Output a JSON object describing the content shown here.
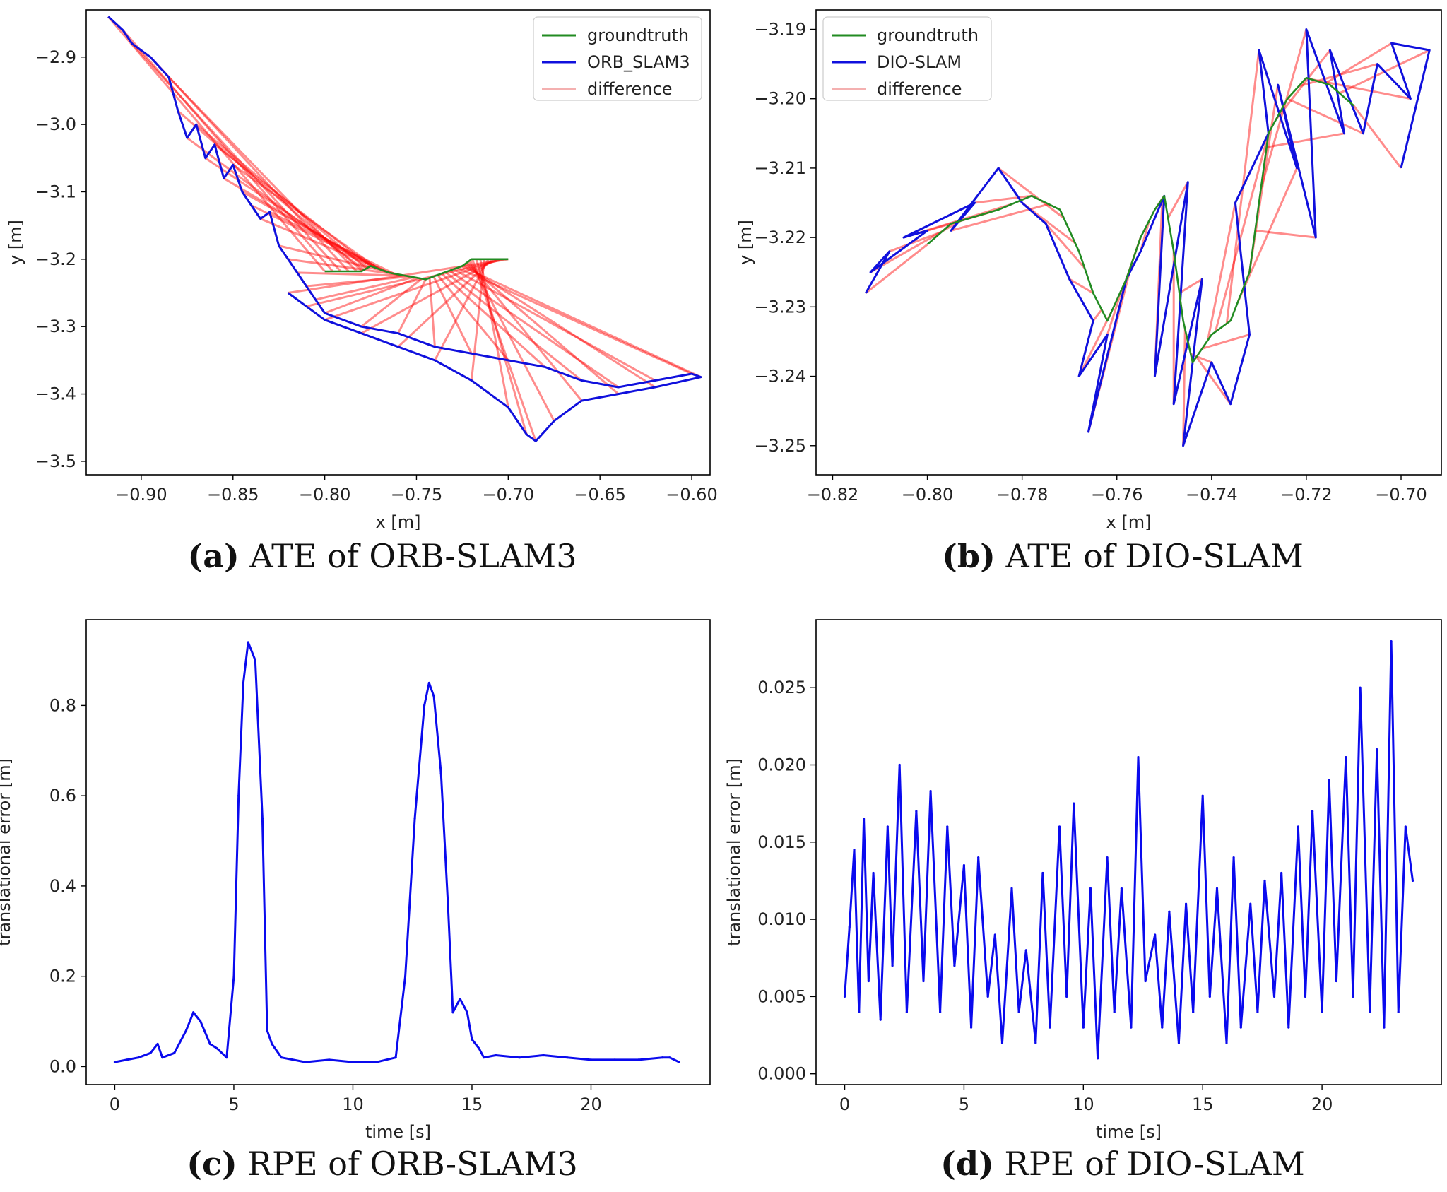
{
  "figure": {
    "captions": [
      {
        "label": "(a)",
        "text": "ATE of ORB-SLAM3"
      },
      {
        "label": "(b)",
        "text": "ATE of DIO-SLAM"
      },
      {
        "label": "(c)",
        "text": "RPE of ORB-SLAM3"
      },
      {
        "label": "(d)",
        "text": "RPE of DIO-SLAM"
      }
    ]
  },
  "colors": {
    "groundtruth": "#228B22",
    "estimate": "#1010dd",
    "difference": "#ff0000",
    "difference_legend": "#f4b0b0",
    "rpe": "#0a0aee",
    "axis": "#000000"
  },
  "chart_data": [
    {
      "type": "line",
      "title": "ATE of ORB-SLAM3",
      "xlabel": "x [m]",
      "ylabel": "y [m]",
      "xlim": [
        -0.93,
        -0.59
      ],
      "ylim": [
        -3.52,
        -2.83
      ],
      "xticks": [
        -0.9,
        -0.85,
        -0.8,
        -0.75,
        -0.7,
        -0.65,
        -0.6
      ],
      "xtick_labels": [
        "−0.90",
        "−0.85",
        "−0.80",
        "−0.75",
        "−0.70",
        "−0.65",
        "−0.60"
      ],
      "yticks": [
        -2.9,
        -3.0,
        -3.1,
        -3.2,
        -3.3,
        -3.4,
        -3.5
      ],
      "ytick_labels": [
        "−2.9",
        "−3.0",
        "−3.1",
        "−3.2",
        "−3.3",
        "−3.4",
        "−3.5"
      ],
      "legend": {
        "position": "top-right",
        "entries": [
          "groundtruth",
          "ORB_SLAM3",
          "difference"
        ]
      },
      "series": [
        {
          "name": "groundtruth",
          "x": [
            -0.8,
            -0.78,
            -0.775,
            -0.765,
            -0.755,
            -0.745,
            -0.735,
            -0.725,
            -0.72,
            -0.71,
            -0.7
          ],
          "y": [
            -3.218,
            -3.218,
            -3.21,
            -3.22,
            -3.225,
            -3.23,
            -3.22,
            -3.21,
            -3.2,
            -3.2,
            -3.2
          ]
        },
        {
          "name": "ORB_SLAM3",
          "x": [
            -0.918,
            -0.91,
            -0.905,
            -0.895,
            -0.885,
            -0.88,
            -0.875,
            -0.87,
            -0.865,
            -0.86,
            -0.855,
            -0.85,
            -0.845,
            -0.84,
            -0.835,
            -0.83,
            -0.825,
            -0.82,
            -0.815,
            -0.81,
            -0.805,
            -0.8,
            -0.78,
            -0.76,
            -0.74,
            -0.72,
            -0.7,
            -0.68,
            -0.66,
            -0.64,
            -0.62,
            -0.6,
            -0.595,
            -0.62,
            -0.64,
            -0.66,
            -0.675,
            -0.685,
            -0.69,
            -0.7,
            -0.72,
            -0.74,
            -0.76,
            -0.78,
            -0.8,
            -0.81,
            -0.82
          ],
          "y": [
            -2.84,
            -2.86,
            -2.88,
            -2.9,
            -2.93,
            -2.98,
            -3.02,
            -3.0,
            -3.05,
            -3.03,
            -3.08,
            -3.06,
            -3.1,
            -3.12,
            -3.14,
            -3.13,
            -3.18,
            -3.2,
            -3.22,
            -3.24,
            -3.26,
            -3.28,
            -3.3,
            -3.31,
            -3.33,
            -3.34,
            -3.35,
            -3.36,
            -3.38,
            -3.39,
            -3.38,
            -3.37,
            -3.375,
            -3.39,
            -3.4,
            -3.41,
            -3.44,
            -3.47,
            -3.46,
            -3.42,
            -3.38,
            -3.35,
            -3.33,
            -3.31,
            -3.29,
            -3.27,
            -3.25
          ]
        }
      ]
    },
    {
      "type": "line",
      "title": "ATE of DIO-SLAM",
      "xlabel": "x [m]",
      "ylabel": "y [m]",
      "xlim": [
        -0.8235,
        -0.6915
      ],
      "ylim": [
        -3.2542,
        -3.1872
      ],
      "xticks": [
        -0.82,
        -0.8,
        -0.78,
        -0.76,
        -0.74,
        -0.72,
        -0.7
      ],
      "xtick_labels": [
        "−0.82",
        "−0.80",
        "−0.78",
        "−0.76",
        "−0.74",
        "−0.72",
        "−0.70"
      ],
      "yticks": [
        -3.19,
        -3.2,
        -3.21,
        -3.22,
        -3.23,
        -3.24,
        -3.25
      ],
      "ytick_labels": [
        "−3.19",
        "−3.20",
        "−3.21",
        "−3.22",
        "−3.23",
        "−3.24",
        "−3.25"
      ],
      "legend": {
        "position": "top-left",
        "entries": [
          "groundtruth",
          "DIO-SLAM",
          "difference"
        ]
      },
      "series": [
        {
          "name": "groundtruth",
          "x": [
            -0.8,
            -0.795,
            -0.785,
            -0.778,
            -0.772,
            -0.768,
            -0.765,
            -0.762,
            -0.758,
            -0.755,
            -0.752,
            -0.75,
            -0.748,
            -0.746,
            -0.744,
            -0.742,
            -0.74,
            -0.736,
            -0.732,
            -0.73,
            -0.728,
            -0.724,
            -0.72,
            -0.715,
            -0.71
          ],
          "y": [
            -3.221,
            -3.218,
            -3.216,
            -3.214,
            -3.216,
            -3.222,
            -3.228,
            -3.232,
            -3.226,
            -3.22,
            -3.216,
            -3.214,
            -3.222,
            -3.232,
            -3.238,
            -3.236,
            -3.234,
            -3.232,
            -3.225,
            -3.215,
            -3.205,
            -3.2,
            -3.197,
            -3.198,
            -3.201
          ]
        },
        {
          "name": "DIO-SLAM",
          "x": [
            -0.813,
            -0.808,
            -0.812,
            -0.8,
            -0.805,
            -0.79,
            -0.795,
            -0.785,
            -0.78,
            -0.775,
            -0.77,
            -0.765,
            -0.768,
            -0.762,
            -0.766,
            -0.758,
            -0.755,
            -0.75,
            -0.752,
            -0.745,
            -0.748,
            -0.742,
            -0.746,
            -0.74,
            -0.736,
            -0.732,
            -0.735,
            -0.728,
            -0.73,
            -0.722,
            -0.726,
            -0.718,
            -0.72,
            -0.712,
            -0.715,
            -0.708,
            -0.705,
            -0.698,
            -0.702,
            -0.694,
            -0.7
          ],
          "y": [
            -3.228,
            -3.222,
            -3.225,
            -3.219,
            -3.22,
            -3.215,
            -3.219,
            -3.21,
            -3.215,
            -3.218,
            -3.226,
            -3.232,
            -3.24,
            -3.234,
            -3.248,
            -3.226,
            -3.222,
            -3.214,
            -3.24,
            -3.212,
            -3.244,
            -3.226,
            -3.25,
            -3.238,
            -3.244,
            -3.234,
            -3.215,
            -3.205,
            -3.193,
            -3.21,
            -3.198,
            -3.22,
            -3.19,
            -3.205,
            -3.193,
            -3.205,
            -3.195,
            -3.2,
            -3.192,
            -3.193,
            -3.21
          ]
        }
      ]
    },
    {
      "type": "line",
      "title": "RPE of ORB-SLAM3",
      "xlabel": "time [s]",
      "ylabel": "translational error [m]",
      "xlim": [
        -1.2,
        25.0
      ],
      "ylim": [
        -0.04,
        0.99
      ],
      "xticks": [
        0,
        5,
        10,
        15,
        20
      ],
      "xtick_labels": [
        "0",
        "5",
        "10",
        "15",
        "20"
      ],
      "yticks": [
        0.0,
        0.2,
        0.4,
        0.6,
        0.8
      ],
      "ytick_labels": [
        "0.0",
        "0.2",
        "0.4",
        "0.6",
        "0.8"
      ],
      "series": [
        {
          "name": "translational error",
          "x": [
            0.0,
            0.5,
            1.0,
            1.5,
            1.8,
            2.0,
            2.5,
            3.0,
            3.3,
            3.6,
            4.0,
            4.3,
            4.7,
            5.0,
            5.2,
            5.4,
            5.6,
            5.9,
            6.2,
            6.4,
            6.6,
            7.0,
            8.0,
            9.0,
            10.0,
            11.0,
            11.8,
            12.2,
            12.6,
            13.0,
            13.2,
            13.4,
            13.7,
            14.0,
            14.2,
            14.5,
            14.8,
            15.0,
            15.3,
            15.5,
            16.0,
            17.0,
            18.0,
            19.0,
            20.0,
            21.0,
            22.0,
            23.0,
            23.3,
            23.7
          ],
          "y": [
            0.01,
            0.015,
            0.02,
            0.03,
            0.05,
            0.02,
            0.03,
            0.08,
            0.12,
            0.1,
            0.05,
            0.04,
            0.02,
            0.2,
            0.6,
            0.85,
            0.94,
            0.9,
            0.55,
            0.08,
            0.05,
            0.02,
            0.01,
            0.015,
            0.01,
            0.01,
            0.02,
            0.2,
            0.55,
            0.8,
            0.85,
            0.82,
            0.65,
            0.35,
            0.12,
            0.15,
            0.12,
            0.06,
            0.04,
            0.02,
            0.025,
            0.02,
            0.025,
            0.02,
            0.015,
            0.015,
            0.015,
            0.02,
            0.02,
            0.01
          ]
        }
      ]
    },
    {
      "type": "line",
      "title": "RPE of DIO-SLAM",
      "xlabel": "time [s]",
      "ylabel": "translational error [m]",
      "xlim": [
        -1.2,
        25.0
      ],
      "ylim": [
        -0.0007,
        0.0294
      ],
      "xticks": [
        0,
        5,
        10,
        15,
        20
      ],
      "xtick_labels": [
        "0",
        "5",
        "10",
        "15",
        "20"
      ],
      "yticks": [
        0.0,
        0.005,
        0.01,
        0.015,
        0.02,
        0.025
      ],
      "ytick_labels": [
        "0.000",
        "0.005",
        "0.010",
        "0.015",
        "0.020",
        "0.025"
      ],
      "series": [
        {
          "name": "translational error",
          "x": [
            0.0,
            0.2,
            0.4,
            0.6,
            0.8,
            1.0,
            1.2,
            1.5,
            1.8,
            2.0,
            2.3,
            2.6,
            3.0,
            3.3,
            3.6,
            4.0,
            4.3,
            4.6,
            5.0,
            5.3,
            5.6,
            6.0,
            6.3,
            6.6,
            7.0,
            7.3,
            7.6,
            8.0,
            8.3,
            8.6,
            9.0,
            9.3,
            9.6,
            10.0,
            10.3,
            10.6,
            11.0,
            11.3,
            11.6,
            12.0,
            12.3,
            12.6,
            13.0,
            13.3,
            13.6,
            14.0,
            14.3,
            14.6,
            15.0,
            15.3,
            15.6,
            16.0,
            16.3,
            16.6,
            17.0,
            17.3,
            17.6,
            18.0,
            18.3,
            18.6,
            19.0,
            19.3,
            19.6,
            20.0,
            20.3,
            20.6,
            21.0,
            21.3,
            21.6,
            22.0,
            22.3,
            22.6,
            22.9,
            23.2,
            23.5,
            23.8
          ],
          "y": [
            0.005,
            0.0095,
            0.0145,
            0.004,
            0.0165,
            0.006,
            0.013,
            0.0035,
            0.016,
            0.007,
            0.02,
            0.004,
            0.017,
            0.006,
            0.0183,
            0.004,
            0.016,
            0.007,
            0.0135,
            0.003,
            0.014,
            0.005,
            0.009,
            0.002,
            0.012,
            0.004,
            0.008,
            0.002,
            0.013,
            0.003,
            0.016,
            0.005,
            0.0175,
            0.003,
            0.012,
            0.001,
            0.014,
            0.004,
            0.012,
            0.003,
            0.0205,
            0.006,
            0.009,
            0.003,
            0.0105,
            0.002,
            0.011,
            0.004,
            0.018,
            0.005,
            0.012,
            0.002,
            0.014,
            0.003,
            0.011,
            0.004,
            0.0125,
            0.005,
            0.013,
            0.003,
            0.016,
            0.005,
            0.017,
            0.004,
            0.019,
            0.006,
            0.0205,
            0.005,
            0.025,
            0.004,
            0.021,
            0.003,
            0.028,
            0.004,
            0.016,
            0.0125
          ]
        }
      ]
    }
  ]
}
